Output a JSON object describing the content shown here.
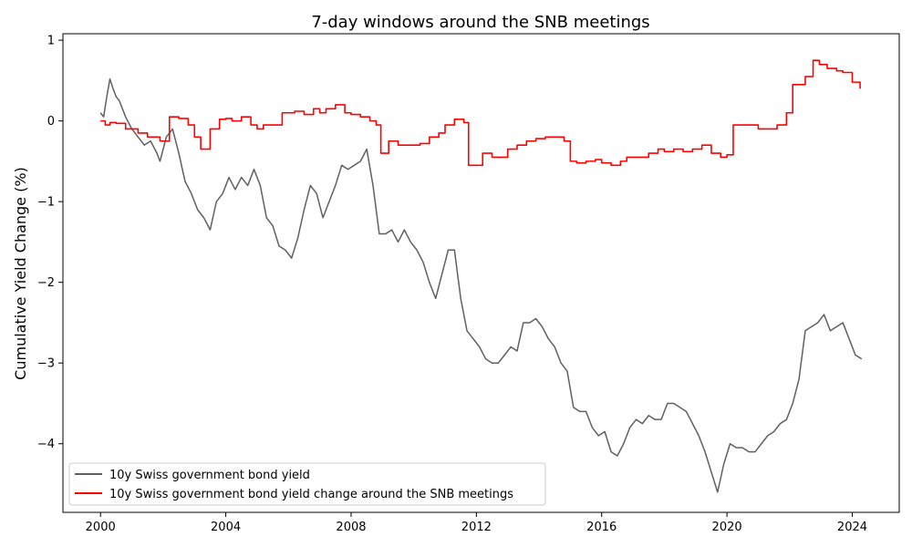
{
  "chart_data": {
    "type": "line",
    "title": "7-day windows around the SNB meetings",
    "xlabel": "",
    "ylabel": "Cumulative Yield Change (%)",
    "xlim": [
      1998.8,
      2025.5
    ],
    "ylim": [
      -4.85,
      1.08
    ],
    "x_ticks": [
      2000,
      2004,
      2008,
      2012,
      2016,
      2020,
      2024
    ],
    "y_ticks": [
      1,
      0,
      -1,
      -2,
      -3,
      -4
    ],
    "y_tick_labels": [
      "1",
      "0",
      "−1",
      "−2",
      "−3",
      "−4"
    ],
    "grid": false,
    "legend_position": "lower-left",
    "series": [
      {
        "name": "10y Swiss government bond yield",
        "color": "#606060",
        "style": "line",
        "x": [
          2000.0,
          2000.1,
          2000.2,
          2000.3,
          2000.4,
          2000.5,
          2000.6,
          2000.8,
          2001.0,
          2001.2,
          2001.4,
          2001.6,
          2001.8,
          2001.9,
          2002.1,
          2002.3,
          2002.5,
          2002.7,
          2002.9,
          2003.1,
          2003.3,
          2003.5,
          2003.7,
          2003.9,
          2004.1,
          2004.3,
          2004.5,
          2004.7,
          2004.9,
          2005.1,
          2005.3,
          2005.5,
          2005.7,
          2005.9,
          2006.1,
          2006.3,
          2006.5,
          2006.7,
          2006.9,
          2007.1,
          2007.3,
          2007.5,
          2007.7,
          2007.9,
          2008.1,
          2008.3,
          2008.5,
          2008.7,
          2008.9,
          2009.1,
          2009.3,
          2009.5,
          2009.7,
          2009.9,
          2010.1,
          2010.3,
          2010.5,
          2010.7,
          2010.9,
          2011.1,
          2011.3,
          2011.5,
          2011.7,
          2011.9,
          2012.1,
          2012.3,
          2012.5,
          2012.7,
          2012.9,
          2013.1,
          2013.3,
          2013.5,
          2013.7,
          2013.9,
          2014.1,
          2014.3,
          2014.5,
          2014.7,
          2014.9,
          2015.1,
          2015.3,
          2015.5,
          2015.7,
          2015.9,
          2016.1,
          2016.3,
          2016.5,
          2016.7,
          2016.9,
          2017.1,
          2017.3,
          2017.5,
          2017.7,
          2017.9,
          2018.1,
          2018.3,
          2018.5,
          2018.7,
          2018.9,
          2019.1,
          2019.3,
          2019.5,
          2019.7,
          2019.9,
          2020.1,
          2020.3,
          2020.5,
          2020.7,
          2020.9,
          2021.1,
          2021.3,
          2021.5,
          2021.7,
          2021.9,
          2022.1,
          2022.3,
          2022.5,
          2022.7,
          2022.9,
          2023.1,
          2023.3,
          2023.5,
          2023.7,
          2023.9,
          2024.1,
          2024.3
        ],
        "y": [
          0.1,
          0.05,
          0.3,
          0.52,
          0.4,
          0.3,
          0.25,
          0.05,
          -0.1,
          -0.2,
          -0.3,
          -0.25,
          -0.4,
          -0.5,
          -0.2,
          -0.1,
          -0.4,
          -0.75,
          -0.9,
          -1.1,
          -1.2,
          -1.35,
          -1.0,
          -0.9,
          -0.7,
          -0.85,
          -0.7,
          -0.8,
          -0.6,
          -0.8,
          -1.2,
          -1.3,
          -1.55,
          -1.6,
          -1.7,
          -1.45,
          -1.1,
          -0.8,
          -0.9,
          -1.2,
          -1.0,
          -0.8,
          -0.55,
          -0.6,
          -0.55,
          -0.5,
          -0.35,
          -0.8,
          -1.4,
          -1.4,
          -1.35,
          -1.5,
          -1.35,
          -1.5,
          -1.6,
          -1.75,
          -2.0,
          -2.2,
          -1.9,
          -1.6,
          -1.6,
          -2.2,
          -2.6,
          -2.7,
          -2.8,
          -2.95,
          -3.0,
          -3.0,
          -2.9,
          -2.8,
          -2.85,
          -2.5,
          -2.5,
          -2.45,
          -2.55,
          -2.7,
          -2.8,
          -3.0,
          -3.1,
          -3.55,
          -3.6,
          -3.6,
          -3.8,
          -3.9,
          -3.85,
          -4.1,
          -4.15,
          -4.0,
          -3.8,
          -3.7,
          -3.75,
          -3.65,
          -3.7,
          -3.7,
          -3.5,
          -3.5,
          -3.55,
          -3.6,
          -3.75,
          -3.9,
          -4.1,
          -4.35,
          -4.6,
          -4.25,
          -4.0,
          -4.05,
          -4.05,
          -4.1,
          -4.1,
          -4.0,
          -3.9,
          -3.85,
          -3.75,
          -3.7,
          -3.5,
          -3.2,
          -2.6,
          -2.55,
          -2.5,
          -2.4,
          -2.6,
          -2.55,
          -2.5,
          -2.7,
          -2.9,
          -2.95
        ]
      },
      {
        "name": "10y Swiss government bond yield change around the SNB meetings",
        "color": "#ff0000",
        "style": "step",
        "x": [
          2000.0,
          2000.15,
          2000.3,
          2000.5,
          2000.8,
          2001.2,
          2001.5,
          2001.9,
          2002.2,
          2002.5,
          2002.8,
          2003.0,
          2003.2,
          2003.5,
          2003.8,
          2004.0,
          2004.2,
          2004.5,
          2004.8,
          2005.0,
          2005.2,
          2005.5,
          2005.8,
          2006.0,
          2006.2,
          2006.5,
          2006.8,
          2007.0,
          2007.2,
          2007.5,
          2007.8,
          2008.0,
          2008.3,
          2008.6,
          2008.8,
          2008.95,
          2009.2,
          2009.5,
          2009.8,
          2010.2,
          2010.5,
          2010.8,
          2011.0,
          2011.3,
          2011.6,
          2011.75,
          2012.0,
          2012.2,
          2012.5,
          2012.8,
          2013.0,
          2013.3,
          2013.6,
          2013.9,
          2014.2,
          2014.5,
          2014.8,
          2015.0,
          2015.2,
          2015.5,
          2015.8,
          2016.0,
          2016.3,
          2016.6,
          2016.8,
          2017.2,
          2017.5,
          2017.8,
          2018.0,
          2018.3,
          2018.6,
          2018.9,
          2019.2,
          2019.5,
          2019.8,
          2020.0,
          2020.2,
          2020.5,
          2020.8,
          2021.0,
          2021.3,
          2021.6,
          2021.9,
          2022.1,
          2022.5,
          2022.75,
          2022.95,
          2023.2,
          2023.5,
          2023.7,
          2024.0,
          2024.25
        ],
        "y": [
          0.0,
          -0.05,
          -0.02,
          -0.03,
          -0.1,
          -0.15,
          -0.2,
          -0.25,
          0.05,
          0.03,
          -0.05,
          -0.2,
          -0.35,
          -0.1,
          0.02,
          0.03,
          0.0,
          0.05,
          -0.05,
          -0.1,
          -0.05,
          -0.05,
          0.1,
          0.1,
          0.12,
          0.08,
          0.15,
          0.1,
          0.15,
          0.2,
          0.1,
          0.08,
          0.05,
          0.0,
          -0.05,
          -0.4,
          -0.25,
          -0.3,
          -0.3,
          -0.28,
          -0.2,
          -0.15,
          -0.05,
          0.02,
          -0.02,
          -0.55,
          -0.55,
          -0.4,
          -0.45,
          -0.45,
          -0.35,
          -0.3,
          -0.25,
          -0.22,
          -0.2,
          -0.2,
          -0.25,
          -0.5,
          -0.52,
          -0.5,
          -0.48,
          -0.52,
          -0.55,
          -0.5,
          -0.45,
          -0.45,
          -0.4,
          -0.35,
          -0.38,
          -0.35,
          -0.38,
          -0.35,
          -0.3,
          -0.4,
          -0.45,
          -0.42,
          -0.05,
          -0.05,
          -0.05,
          -0.1,
          -0.1,
          -0.05,
          0.1,
          0.45,
          0.55,
          0.75,
          0.7,
          0.65,
          0.62,
          0.6,
          0.48,
          0.4
        ]
      }
    ]
  }
}
